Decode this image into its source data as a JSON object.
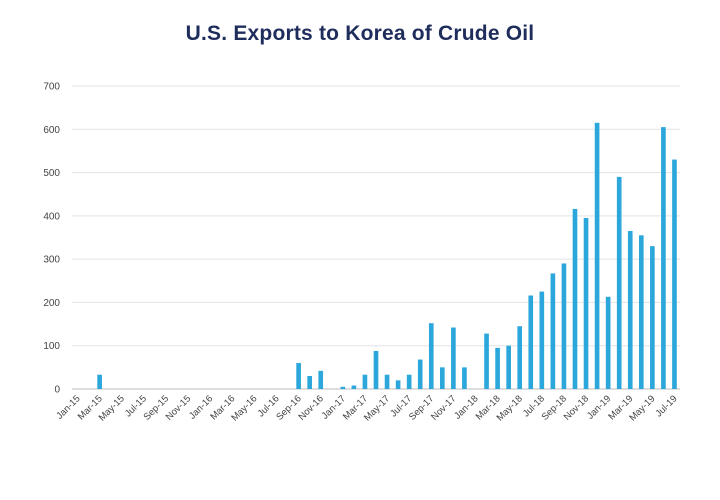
{
  "chart_data": {
    "type": "bar",
    "title": "U.S. Exports to Korea of Crude Oil",
    "xlabel": "",
    "ylabel": "",
    "ylim": [
      0,
      700
    ],
    "yticks": [
      0,
      100,
      200,
      300,
      400,
      500,
      600,
      700
    ],
    "grid": true,
    "bar_color": "#2ba7db",
    "tick_labels": [
      "Jan-15",
      "Mar-15",
      "May-15",
      "Jul-15",
      "Sep-15",
      "Nov-15",
      "Jan-16",
      "Mar-16",
      "May-16",
      "Jul-16",
      "Sep-16",
      "Nov-16",
      "Jan-17",
      "Mar-17",
      "May-17",
      "Jul-17",
      "Sep-17",
      "Nov-17",
      "Jan-18",
      "Mar-18",
      "May-18",
      "Jul-18",
      "Sep-18",
      "Nov-18",
      "Jan-19",
      "Mar-19",
      "May-19",
      "Jul-19"
    ],
    "categories": [
      "Jan-15",
      "Feb-15",
      "Mar-15",
      "Apr-15",
      "May-15",
      "Jun-15",
      "Jul-15",
      "Aug-15",
      "Sep-15",
      "Oct-15",
      "Nov-15",
      "Dec-15",
      "Jan-16",
      "Feb-16",
      "Mar-16",
      "Apr-16",
      "May-16",
      "Jun-16",
      "Jul-16",
      "Aug-16",
      "Sep-16",
      "Oct-16",
      "Nov-16",
      "Dec-16",
      "Jan-17",
      "Feb-17",
      "Mar-17",
      "Apr-17",
      "May-17",
      "Jun-17",
      "Jul-17",
      "Aug-17",
      "Sep-17",
      "Oct-17",
      "Nov-17",
      "Dec-17",
      "Jan-18",
      "Feb-18",
      "Mar-18",
      "Apr-18",
      "May-18",
      "Jun-18",
      "Jul-18",
      "Aug-18",
      "Sep-18",
      "Oct-18",
      "Nov-18",
      "Dec-18",
      "Jan-19",
      "Feb-19",
      "Mar-19",
      "Apr-19",
      "May-19",
      "Jun-19",
      "Jul-19"
    ],
    "values": [
      0,
      0,
      33,
      0,
      0,
      0,
      0,
      0,
      0,
      0,
      0,
      0,
      0,
      0,
      0,
      0,
      0,
      0,
      0,
      0,
      60,
      30,
      42,
      0,
      5,
      8,
      33,
      88,
      33,
      20,
      33,
      68,
      152,
      50,
      142,
      50,
      0,
      128,
      95,
      100,
      145,
      216,
      225,
      267,
      290,
      416,
      395,
      615,
      213,
      490,
      365,
      355,
      330,
      605,
      530
    ]
  }
}
